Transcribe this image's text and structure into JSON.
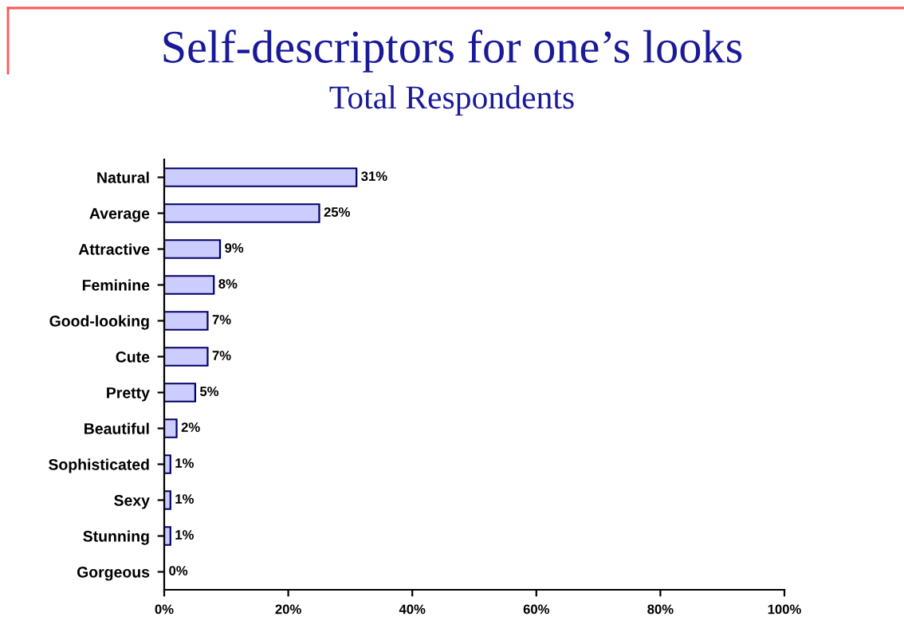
{
  "chart_data": {
    "type": "bar",
    "orientation": "horizontal",
    "title": "Self-descriptors for one’s looks",
    "subtitle": "Total Respondents",
    "categories": [
      "Natural",
      "Average",
      "Attractive",
      "Feminine",
      "Good-looking",
      "Cute",
      "Pretty",
      "Beautiful",
      "Sophisticated",
      "Sexy",
      "Stunning",
      "Gorgeous"
    ],
    "values": [
      31,
      25,
      9,
      8,
      7,
      7,
      5,
      2,
      1,
      1,
      1,
      0
    ],
    "value_labels": [
      "31%",
      "25%",
      "9%",
      "8%",
      "7%",
      "7%",
      "5%",
      "2%",
      "1%",
      "1%",
      "1%",
      "0%"
    ],
    "color": "#ccccff",
    "xlim": [
      0,
      100
    ],
    "xticks": [
      {
        "value": 0,
        "label": "0%"
      },
      {
        "value": 20,
        "label": "20%"
      },
      {
        "value": 40,
        "label": "40%"
      },
      {
        "value": 60,
        "label": "60%"
      },
      {
        "value": 80,
        "label": "80%"
      },
      {
        "value": 100,
        "label": "100%"
      }
    ],
    "grid": false,
    "legend": false
  }
}
